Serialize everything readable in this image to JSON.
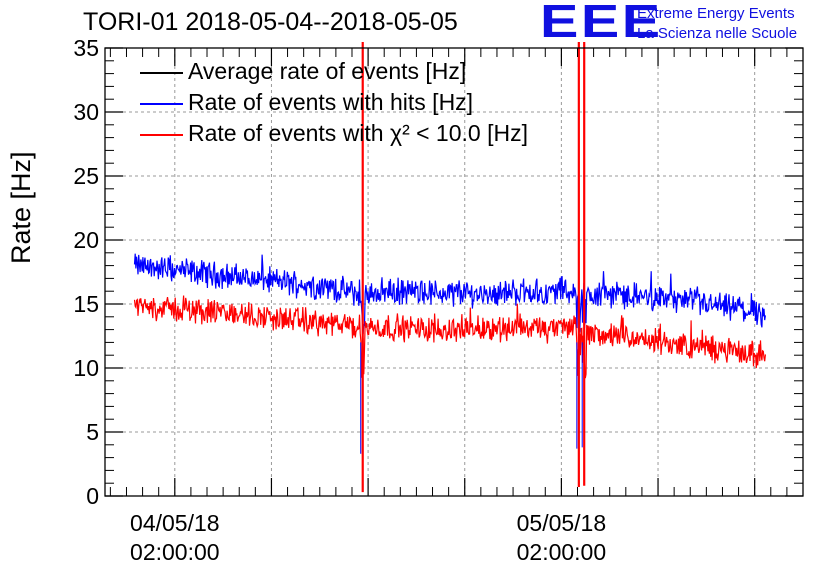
{
  "chart_data": {
    "type": "line",
    "title": "TORI-01 2018-05-04--2018-05-05",
    "ylabel": "Rate [Hz]",
    "xlabel": "",
    "ylim": [
      0,
      35
    ],
    "yticks": [
      0,
      5,
      10,
      15,
      20,
      25,
      30,
      35
    ],
    "xticks": [
      {
        "date": "04/05/18",
        "time": "02:00:00",
        "t": "2018-05-04T02:00:00"
      },
      {
        "date": "05/05/18",
        "time": "02:00:00",
        "t": "2018-05-05T02:00:00"
      }
    ],
    "xlim": [
      "2018-05-03T21:40:00",
      "2018-05-05T17:00:00"
    ],
    "grid": true,
    "legend_placement": "top-left",
    "series": [
      {
        "name": "Average rate of events [Hz]",
        "color": "#000000",
        "x": [],
        "y": []
      },
      {
        "name": "Rate of events with hits [Hz]",
        "color": "#0000ff",
        "x": [
          "2018-05-03T23:30:00",
          "2018-05-04T01:00:00",
          "2018-05-04T03:00:00",
          "2018-05-04T06:00:00",
          "2018-05-04T09:00:00",
          "2018-05-04T12:00:00",
          "2018-05-04T13:20:00",
          "2018-05-04T15:00:00",
          "2018-05-04T18:00:00",
          "2018-05-04T21:00:00",
          "2018-05-05T00:00:00",
          "2018-05-05T01:10:00",
          "2018-05-05T01:20:00",
          "2018-05-05T02:00:00",
          "2018-05-05T02:30:00",
          "2018-05-05T05:00:00",
          "2018-05-05T08:00:00",
          "2018-05-05T11:00:00",
          "2018-05-05T14:40:00"
        ],
        "y": [
          18.0,
          17.8,
          17.5,
          17.1,
          16.7,
          16.2,
          15.8,
          16.0,
          15.9,
          15.8,
          16.0,
          15.7,
          15.9,
          16.2,
          16.0,
          15.8,
          15.5,
          15.0,
          14.2
        ]
      },
      {
        "name": "Rate of events with χ² < 10.0 [Hz]",
        "color": "#ff0000",
        "x": [
          "2018-05-03T23:30:00",
          "2018-05-04T01:00:00",
          "2018-05-04T03:00:00",
          "2018-05-04T06:00:00",
          "2018-05-04T09:00:00",
          "2018-05-04T12:00:00",
          "2018-05-04T13:20:00",
          "2018-05-04T15:00:00",
          "2018-05-04T18:00:00",
          "2018-05-04T21:00:00",
          "2018-05-05T00:00:00",
          "2018-05-05T01:10:00",
          "2018-05-05T01:20:00",
          "2018-05-05T02:00:00",
          "2018-05-05T02:30:00",
          "2018-05-05T05:00:00",
          "2018-05-05T08:00:00",
          "2018-05-05T11:00:00",
          "2018-05-05T14:40:00"
        ],
        "y": [
          14.8,
          14.7,
          14.5,
          14.2,
          13.8,
          13.4,
          13.1,
          13.2,
          13.0,
          13.1,
          13.2,
          12.9,
          13.0,
          13.3,
          13.1,
          12.5,
          12.0,
          11.6,
          10.9
        ]
      }
    ],
    "spikes": [
      {
        "t": "2018-05-04T13:40:00",
        "ymin": 0.3,
        "ymax": 35
      },
      {
        "t": "2018-05-05T03:05:00",
        "ymin": 0.7,
        "ymax": 35
      },
      {
        "t": "2018-05-05T03:25:00",
        "ymin": 0.8,
        "ymax": 35
      }
    ]
  },
  "chart_title": "TORI-01 2018-05-04--2018-05-05",
  "logo": {
    "mark": "EEE",
    "line1": "Extreme Energy Events",
    "line2": "La Scienza nelle Scuole"
  },
  "legend": {
    "items": [
      {
        "label": "Average rate of events [Hz]",
        "color": "#000000"
      },
      {
        "label": "Rate of events with hits [Hz]",
        "color": "#0000ff"
      },
      {
        "label": "Rate of events with χ² < 10.0 [Hz]",
        "color": "#ff0000"
      }
    ]
  }
}
